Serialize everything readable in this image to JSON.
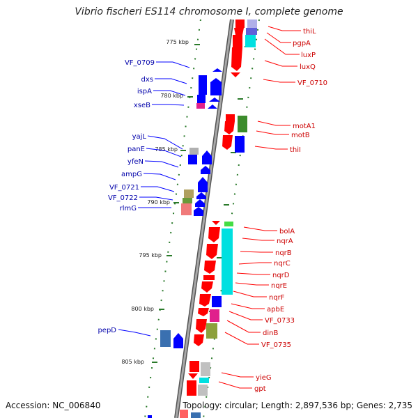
{
  "title": "Vibrio fischeri ES114 chromosome I, complete genome",
  "footer": {
    "accession": "Accession: NC_006840",
    "summary": "Topology: circular; Length: 2,897,536 bp; Genes: 2,735"
  },
  "colors": {
    "backbone": "#8c8c8c",
    "backbone_edge": "#555555",
    "minus_strand": "#0000ff",
    "plus_strand": "#ff0000",
    "tick": "#2a7a2a",
    "cyan": "#00e0e0",
    "green": "#4a9a3a",
    "magenta": "#e0208c",
    "gray": "#b8b8b8",
    "olive": "#a89a50"
  },
  "ticks": [
    "775 kbp",
    "780 kbp",
    "785 kbp",
    "790 kbp",
    "795 kbp",
    "800 kbp",
    "805 kbp"
  ],
  "plus_labels": [
    "thiL",
    "pgpA",
    "luxP",
    "luxQ",
    "VF_0710",
    "motA1",
    "motB",
    "thiI",
    "bolA",
    "nqrA",
    "nqrB",
    "nqrC",
    "nqrD",
    "nqrE",
    "nqrF",
    "apbE",
    "VF_0733",
    "dinB",
    "VF_0735",
    "yieG",
    "gpt"
  ],
  "minus_labels": [
    "VF_0709",
    "dxs",
    "ispA",
    "xseB",
    "yajL",
    "panE",
    "yfeN",
    "ampG",
    "VF_0721",
    "VF_0722",
    "rlmG",
    "pepD"
  ]
}
